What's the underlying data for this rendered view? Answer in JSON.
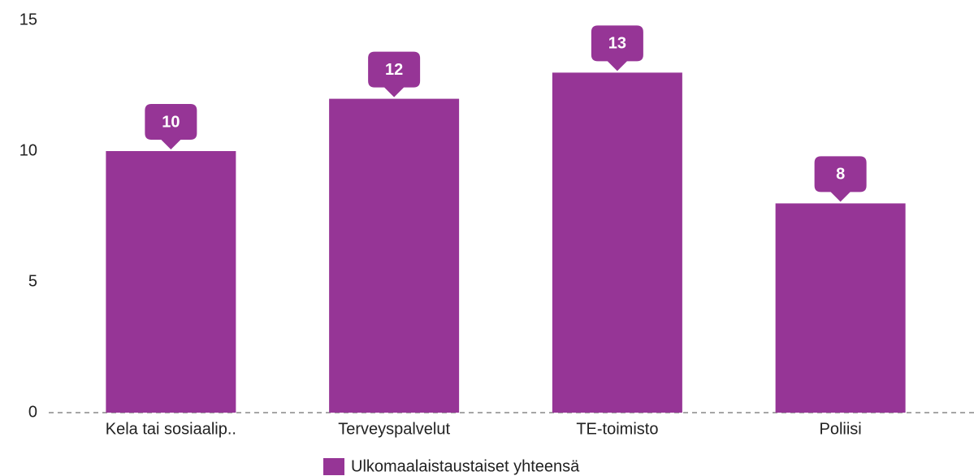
{
  "chart_data": {
    "type": "bar",
    "categories": [
      "Kela tai sosiaalip..",
      "Terveyspalvelut",
      "TE-toimisto",
      "Poliisi"
    ],
    "series": [
      {
        "name": "Ulkomaalaistaustaiset yhteensä",
        "color": "#963596",
        "values": [
          10,
          12,
          13,
          8
        ]
      }
    ],
    "ylim": [
      0,
      15
    ],
    "yticks": [
      0,
      5,
      10,
      15
    ],
    "grid": false,
    "legend": "bottom"
  }
}
